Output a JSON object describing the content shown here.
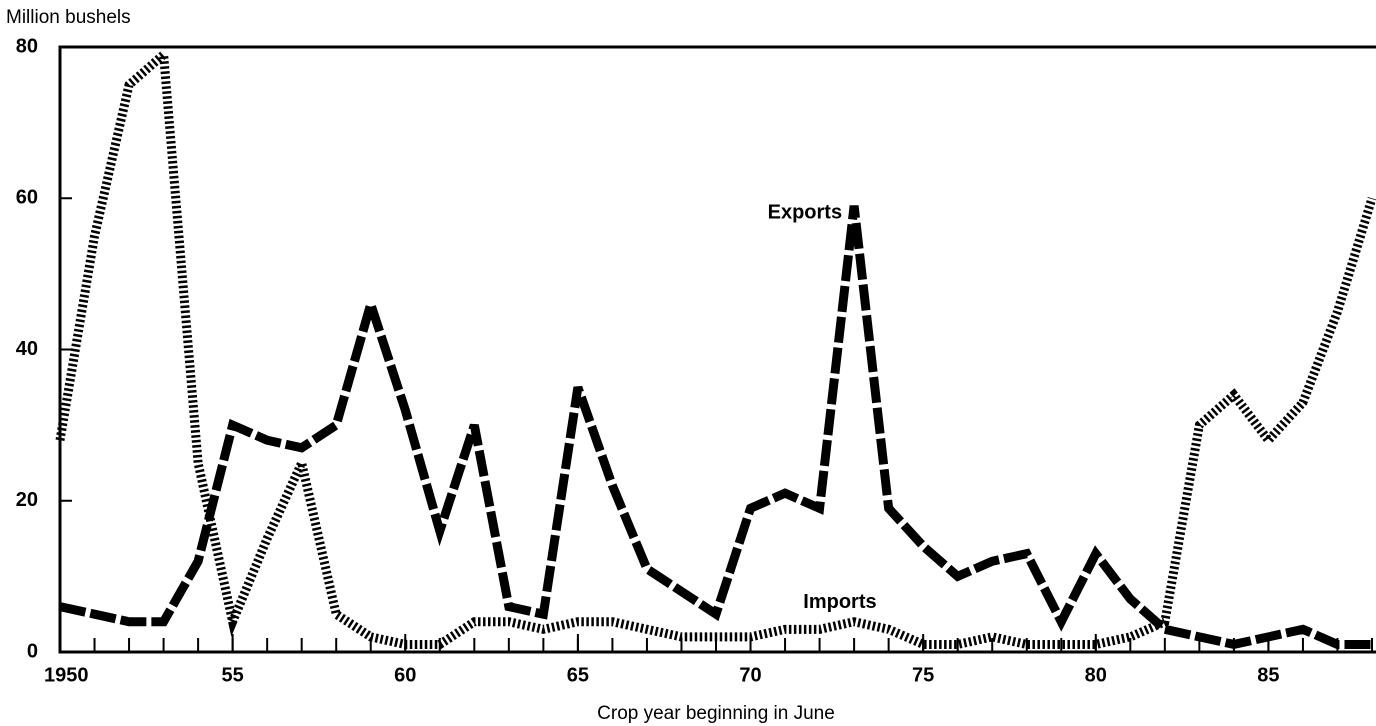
{
  "chart_data": {
    "type": "line",
    "y_label": "Million bushels",
    "x_label": "Crop year beginning in June",
    "x": [
      1950,
      1951,
      1952,
      1953,
      1954,
      1955,
      1956,
      1957,
      1958,
      1959,
      1960,
      1961,
      1962,
      1963,
      1964,
      1965,
      1966,
      1967,
      1968,
      1969,
      1970,
      1971,
      1972,
      1973,
      1974,
      1975,
      1976,
      1977,
      1978,
      1979,
      1980,
      1981,
      1982,
      1983,
      1984,
      1985,
      1986,
      1987,
      1988
    ],
    "series": [
      {
        "name": "Exports",
        "color": "#000000",
        "style": "dashed",
        "values": [
          6,
          5,
          4,
          4,
          12,
          30,
          28,
          27,
          30,
          46,
          32,
          16,
          30,
          6,
          5,
          35,
          22,
          11,
          8,
          5,
          19,
          21,
          19,
          59,
          19,
          14,
          10,
          12,
          13,
          4,
          13,
          7,
          3,
          2,
          1,
          2,
          3,
          1,
          1
        ]
      },
      {
        "name": "Imports",
        "color": "#000000",
        "style": "dotted",
        "values": [
          28,
          55,
          75,
          79,
          25,
          4,
          15,
          25,
          5,
          2,
          1,
          1,
          4,
          4,
          3,
          4,
          4,
          3,
          2,
          2,
          2,
          3,
          3,
          4,
          3,
          1,
          1,
          2,
          1,
          1,
          1,
          2,
          4,
          30,
          34,
          28,
          33,
          45,
          60
        ]
      }
    ],
    "xlim": [
      1950,
      1988
    ],
    "xticks": [
      1950,
      {
        "value": 1955,
        "label": "55"
      },
      {
        "value": 1960,
        "label": "60"
      },
      {
        "value": 1965,
        "label": "65"
      },
      {
        "value": 1970,
        "label": "70"
      },
      {
        "value": 1975,
        "label": "75"
      },
      {
        "value": 1980,
        "label": "80"
      },
      {
        "value": 1985,
        "label": "85"
      }
    ],
    "ylim": [
      0,
      80
    ],
    "yticks": [
      0,
      20,
      40,
      60,
      80
    ],
    "annotations": [
      {
        "text": "Exports",
        "x": 1973,
        "y": 58
      },
      {
        "text": "Imports",
        "x": 1974,
        "y": 6.5
      }
    ]
  }
}
